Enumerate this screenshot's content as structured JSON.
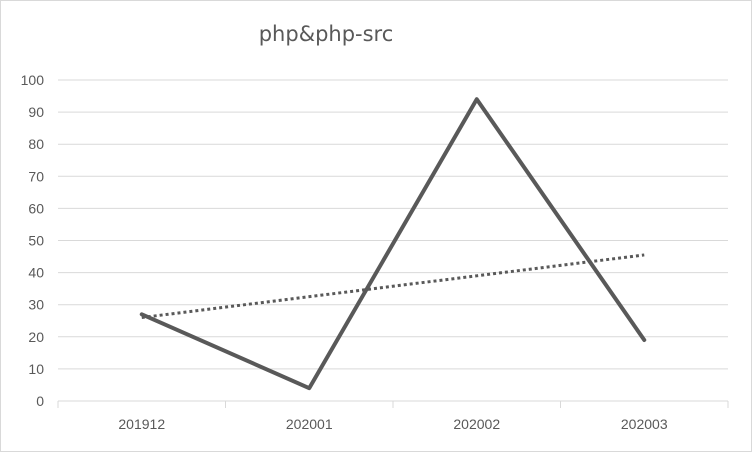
{
  "chart_data": {
    "type": "line",
    "title": "php&php-src",
    "xlabel": "",
    "ylabel": "",
    "categories": [
      "201912",
      "202001",
      "202002",
      "202003"
    ],
    "series": [
      {
        "values": [
          27,
          4,
          94,
          19
        ],
        "color": "#595959",
        "style": "solid"
      },
      {
        "values": [
          26,
          32.5,
          39,
          45.5
        ],
        "color": "#595959",
        "style": "dotted",
        "kind": "linear-trendline"
      }
    ],
    "ylim": [
      0,
      100
    ],
    "yticks": [
      0,
      10,
      20,
      30,
      40,
      50,
      60,
      70,
      80,
      90,
      100
    ],
    "grid": true,
    "legend": "none"
  },
  "colors": {
    "gridline": "#d9d9d9",
    "axis": "#d9d9d9",
    "text": "#595959"
  }
}
